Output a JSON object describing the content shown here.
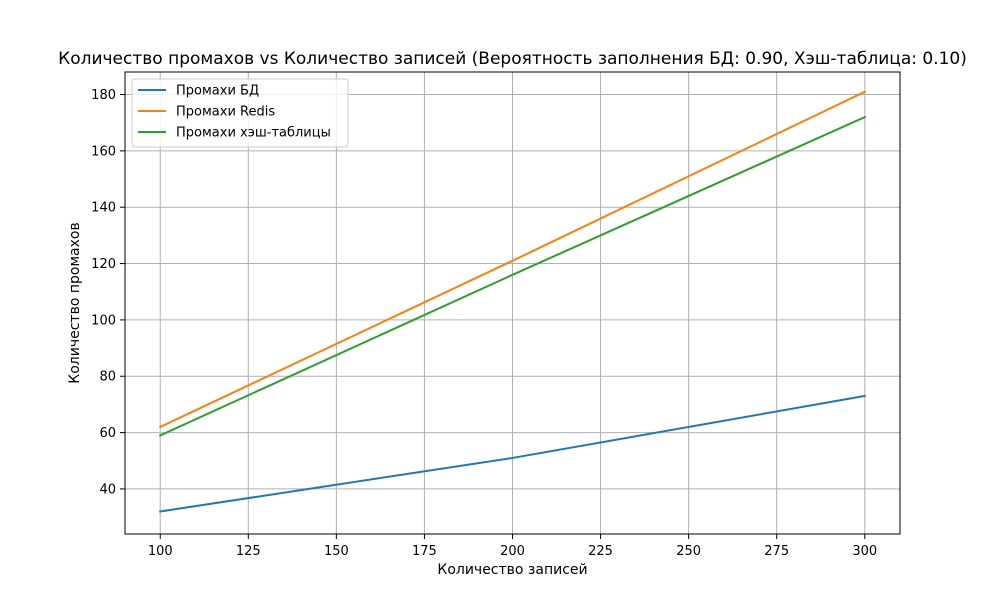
{
  "chart_data": {
    "type": "line",
    "title": "Количество промахов vs Количество записей (Вероятность заполнения БД: 0.90, Хэш-таблица: 0.10)",
    "xlabel": "Количество записей",
    "ylabel": "Количество промахов",
    "xlim": [
      90,
      310
    ],
    "ylim": [
      24,
      188
    ],
    "grid": true,
    "legend_position": "upper-left",
    "x_ticks": [
      "100",
      "125",
      "150",
      "175",
      "200",
      "225",
      "250",
      "275",
      "300"
    ],
    "y_ticks": [
      "40",
      "60",
      "80",
      "100",
      "120",
      "140",
      "160",
      "180"
    ],
    "x_tick_values": [
      100,
      125,
      150,
      175,
      200,
      225,
      250,
      275,
      300
    ],
    "y_tick_values": [
      40,
      60,
      80,
      100,
      120,
      140,
      160,
      180
    ],
    "x": [
      100,
      200,
      300
    ],
    "series": [
      {
        "name": "Промахи БД",
        "color": "#1f77b4",
        "values": [
          32,
          51,
          73
        ]
      },
      {
        "name": "Промахи Redis",
        "color": "#ff7f0e",
        "values": [
          62,
          121,
          181
        ]
      },
      {
        "name": "Промахи хэш-таблицы",
        "color": "#2ca02c",
        "values": [
          59,
          116,
          172
        ]
      }
    ]
  }
}
